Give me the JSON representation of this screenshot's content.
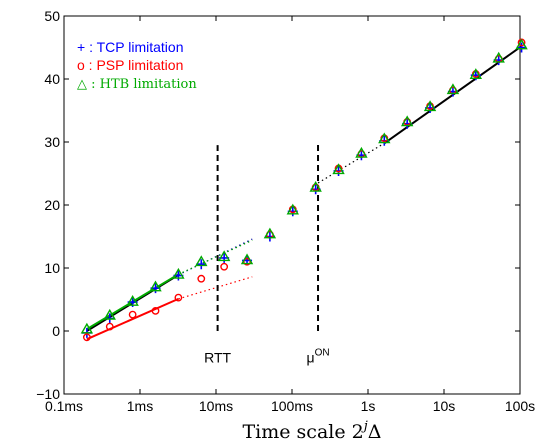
{
  "chart_data": {
    "type": "scatter",
    "title": "",
    "xlabel": "Time scale 2^j Δ",
    "xlabel_main": "Time scale 2",
    "xlabel_sup": "j",
    "xlabel_tail": "Δ",
    "ylabel": "",
    "xscale": "log10",
    "xlim": [
      0.0001,
      100
    ],
    "ylim": [
      -10,
      50
    ],
    "grid": false,
    "legend_position": "top-left",
    "x_ticks": [
      {
        "value": 0.0001,
        "label": "0.1ms"
      },
      {
        "value": 0.001,
        "label": "1ms"
      },
      {
        "value": 0.01,
        "label": "10ms"
      },
      {
        "value": 0.1,
        "label": "100ms"
      },
      {
        "value": 1,
        "label": "1s"
      },
      {
        "value": 10,
        "label": "10s"
      },
      {
        "value": 100,
        "label": "100s"
      }
    ],
    "y_ticks": [
      {
        "value": -10,
        "label": "−10"
      },
      {
        "value": 0,
        "label": "0"
      },
      {
        "value": 10,
        "label": "10"
      },
      {
        "value": 20,
        "label": "20"
      },
      {
        "value": 30,
        "label": "30"
      },
      {
        "value": 40,
        "label": "40"
      },
      {
        "value": 50,
        "label": "50"
      }
    ],
    "x": [
      0.0002,
      0.0004,
      0.0008,
      0.0016,
      0.0032,
      0.0064,
      0.0128,
      0.0256,
      0.0512,
      0.1024,
      0.2048,
      0.4096,
      0.8192,
      1.6384,
      3.2768,
      6.5536,
      13.1072,
      26.2144,
      52.4288,
      104.8576
    ],
    "series": [
      {
        "name": "+ : TCP limitation",
        "marker": "plus",
        "color": "#0000ff",
        "values": [
          -0.3,
          2.0,
          4.6,
          6.8,
          8.8,
          10.6,
          11.6,
          11.2,
          15.0,
          19.0,
          22.5,
          25.4,
          27.9,
          30.2,
          32.9,
          35.4,
          38.0,
          40.6,
          43.0,
          45.0
        ]
      },
      {
        "name": "o : PSP limitation",
        "marker": "circle",
        "color": "#ff0000",
        "values": [
          -1.0,
          0.7,
          2.6,
          3.2,
          5.3,
          8.3,
          10.2,
          11.0,
          15.3,
          19.3,
          22.8,
          25.8,
          28.1,
          30.6,
          33.2,
          35.7,
          38.2,
          40.8,
          43.2,
          45.8
        ]
      },
      {
        "name": "Δ : HTB limitation",
        "marker": "triangle",
        "color": "#00aa00",
        "values": [
          0.3,
          2.5,
          4.7,
          7.0,
          9.0,
          11.0,
          11.8,
          11.3,
          15.4,
          19.2,
          22.8,
          25.6,
          28.2,
          30.5,
          33.2,
          35.6,
          38.3,
          40.7,
          43.3,
          45.4
        ]
      }
    ],
    "fit_lines": [
      {
        "color": "#000000",
        "style": "solid",
        "x": [
          0.0002,
          0.0032
        ],
        "y": [
          0.0,
          8.9
        ]
      },
      {
        "color": "#00aa00",
        "style": "solid",
        "x": [
          0.0002,
          0.0032
        ],
        "y": [
          0.3,
          9.0
        ]
      },
      {
        "color": "#ff0000",
        "style": "solid",
        "x": [
          0.0002,
          0.0032
        ],
        "y": [
          -1.3,
          5.1
        ]
      },
      {
        "color": "#0000aa",
        "style": "dotted",
        "x": [
          0.0032,
          0.03
        ],
        "y": [
          8.9,
          14.6
        ]
      },
      {
        "color": "#ff0000",
        "style": "dotted",
        "x": [
          0.0032,
          0.03
        ],
        "y": [
          5.1,
          8.6
        ]
      },
      {
        "color": "#00aa00",
        "style": "dotted",
        "x": [
          0.0032,
          0.03
        ],
        "y": [
          9.0,
          14.4
        ]
      },
      {
        "color": "#000000",
        "style": "dotted",
        "x": [
          0.22,
          1.64
        ],
        "y": [
          23.5,
          29.8
        ]
      },
      {
        "color": "#000000",
        "style": "solid",
        "x": [
          1.64,
          104.8576
        ],
        "y": [
          29.8,
          45.2
        ]
      }
    ],
    "vlines": [
      {
        "x": 0.0105,
        "y": [
          0,
          29.5
        ],
        "style": "dashed",
        "label": "RTT",
        "label_y": -5
      },
      {
        "x": 0.22,
        "y": [
          0,
          30.0
        ],
        "style": "dashed",
        "label": "μ",
        "label_sup": "ON",
        "label_y": -5
      }
    ],
    "legend": [
      {
        "marker": "+",
        "text": " : TCP limitation",
        "color": "#0000ff"
      },
      {
        "marker": "o",
        "text": " : PSP limitation",
        "color": "#ff0000"
      },
      {
        "marker": "△",
        "text": " : HTB limitation",
        "color": "#00aa00"
      }
    ]
  }
}
